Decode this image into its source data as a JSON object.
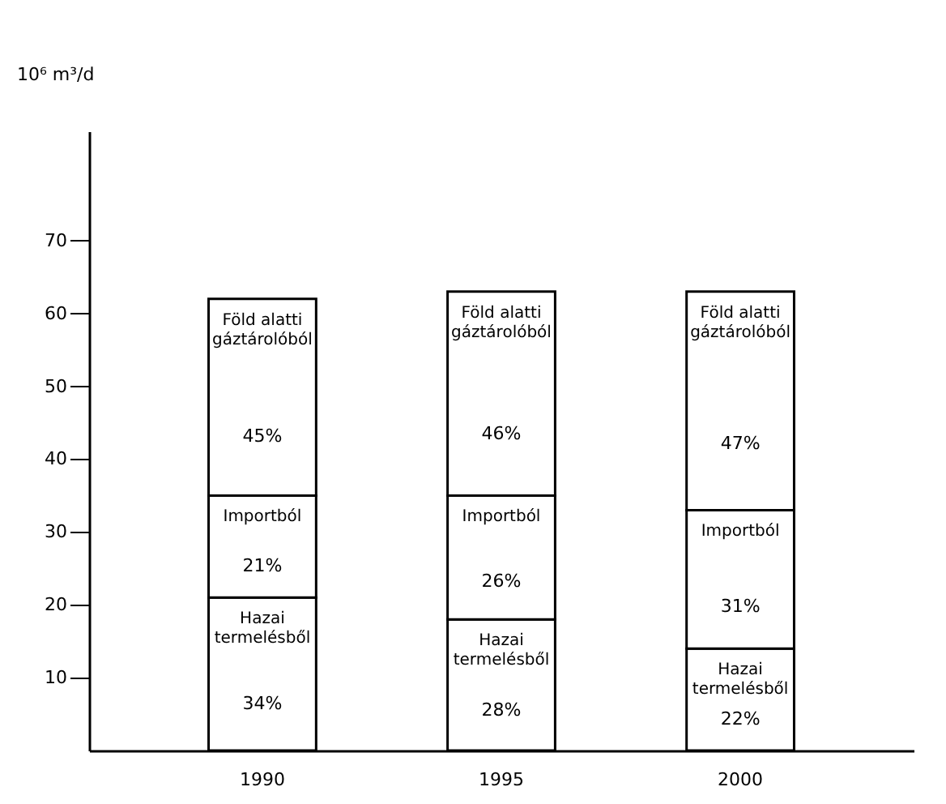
{
  "chart_data": {
    "type": "bar",
    "stacked": true,
    "categories": [
      "1990",
      "1995",
      "2000"
    ],
    "ylabel": "10⁶ m³/d",
    "ylim": [
      0,
      85
    ],
    "yticks": [
      10,
      20,
      30,
      40,
      50,
      60,
      70
    ],
    "grid": false,
    "legend": false,
    "series": [
      {
        "name": "Hazai termelésből",
        "color": "#ffffff",
        "values": [
          21,
          18,
          14
        ]
      },
      {
        "name": "Importból",
        "color": "#ffffff",
        "values": [
          14,
          17,
          19
        ]
      },
      {
        "name": "Föld alatti gáztárolóból",
        "color": "#ffffff",
        "values": [
          27,
          28,
          30
        ]
      }
    ],
    "annotations": [
      "34%",
      "21%",
      "45%",
      "28%",
      "26%",
      "46%",
      "22%",
      "31%",
      "47%"
    ]
  }
}
